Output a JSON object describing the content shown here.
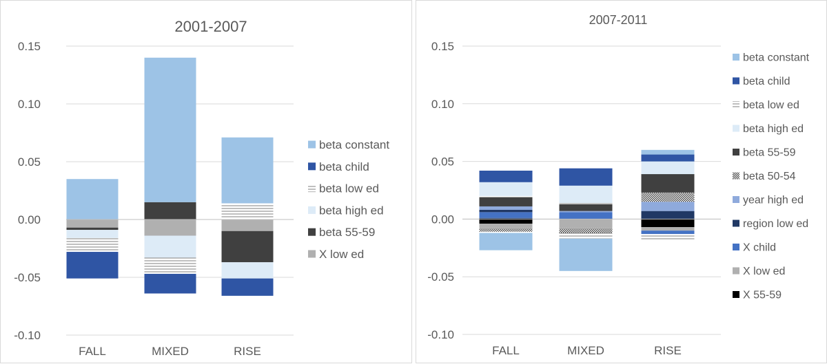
{
  "chart_data": [
    {
      "type": "bar",
      "stacked": true,
      "title": "2001-2007",
      "categories": [
        "FALL",
        "MIXED",
        "RISE"
      ],
      "ylim": [
        -0.1,
        0.15
      ],
      "yticks": [
        "0.15",
        "0.10",
        "0.05",
        "0.00",
        "-0.05",
        "-0.10"
      ],
      "ytick_values": [
        0.15,
        0.1,
        0.05,
        0.0,
        -0.05,
        -0.1
      ],
      "grid": true,
      "legend_position": "right",
      "legend": [
        {
          "name": "beta constant",
          "color": "#9dc3e6",
          "pattern": "solid"
        },
        {
          "name": "beta child",
          "color": "#2f55a4",
          "pattern": "solid"
        },
        {
          "name": "beta low ed",
          "color": "#ffffff",
          "pattern": "hlines"
        },
        {
          "name": "beta high ed",
          "color": "#ddebf7",
          "pattern": "solid"
        },
        {
          "name": "beta 55-59",
          "color": "#404040",
          "pattern": "solid"
        },
        {
          "name": "X low ed",
          "color": "#b0b0b0",
          "pattern": "solid"
        }
      ],
      "bars": [
        {
          "category": "FALL",
          "segments": [
            {
              "series": "beta constant",
              "from": 0,
              "to": 0.035
            },
            {
              "series": "X low ed",
              "from": 0,
              "to": -0.007
            },
            {
              "series": "beta 55-59",
              "from": -0.007,
              "to": -0.009
            },
            {
              "series": "beta high ed",
              "from": -0.009,
              "to": -0.016
            },
            {
              "series": "beta low ed",
              "from": -0.016,
              "to": -0.028
            },
            {
              "series": "beta child",
              "from": -0.028,
              "to": -0.051
            }
          ]
        },
        {
          "category": "MIXED",
          "segments": [
            {
              "series": "beta 55-59",
              "from": 0,
              "to": 0.015
            },
            {
              "series": "beta constant",
              "from": 0.015,
              "to": 0.14
            },
            {
              "series": "X low ed",
              "from": 0,
              "to": -0.014
            },
            {
              "series": "beta high ed",
              "from": -0.014,
              "to": -0.033
            },
            {
              "series": "beta low ed",
              "from": -0.033,
              "to": -0.047
            },
            {
              "series": "beta child",
              "from": -0.047,
              "to": -0.064
            }
          ]
        },
        {
          "category": "RISE",
          "segments": [
            {
              "series": "beta low ed",
              "from": 0,
              "to": 0.014
            },
            {
              "series": "beta constant",
              "from": 0.014,
              "to": 0.071
            },
            {
              "series": "X low ed",
              "from": 0,
              "to": -0.01
            },
            {
              "series": "beta 55-59",
              "from": -0.01,
              "to": -0.037
            },
            {
              "series": "beta high ed",
              "from": -0.037,
              "to": -0.051
            },
            {
              "series": "beta child",
              "from": -0.051,
              "to": -0.066
            }
          ]
        }
      ]
    },
    {
      "type": "bar",
      "stacked": true,
      "title": "2007-2011",
      "categories": [
        "FALL",
        "MIXED",
        "RISE"
      ],
      "ylim": [
        -0.1,
        0.15
      ],
      "yticks": [
        "0.15",
        "0.10",
        "0.05",
        "0.00",
        "-0.05",
        "-0.10"
      ],
      "ytick_values": [
        0.15,
        0.1,
        0.05,
        0.0,
        -0.05,
        -0.1
      ],
      "grid": true,
      "legend_position": "right",
      "legend": [
        {
          "name": "beta constant",
          "color": "#9dc3e6",
          "pattern": "solid"
        },
        {
          "name": "beta child",
          "color": "#2f55a4",
          "pattern": "solid"
        },
        {
          "name": "beta low ed",
          "color": "#ffffff",
          "pattern": "hlines"
        },
        {
          "name": "beta high ed",
          "color": "#ddebf7",
          "pattern": "solid"
        },
        {
          "name": "beta 55-59",
          "color": "#404040",
          "pattern": "solid"
        },
        {
          "name": "beta 50-54",
          "color": "#808080",
          "pattern": "checker"
        },
        {
          "name": "year high ed",
          "color": "#8faadc",
          "pattern": "solid"
        },
        {
          "name": "region low ed",
          "color": "#203864",
          "pattern": "solid"
        },
        {
          "name": "X child",
          "color": "#4472c4",
          "pattern": "solid"
        },
        {
          "name": "X low ed",
          "color": "#b0b0b0",
          "pattern": "solid"
        },
        {
          "name": "X 55-59",
          "color": "#000000",
          "pattern": "solid"
        }
      ],
      "bars": [
        {
          "category": "FALL",
          "segments": [
            {
              "series": "region low ed",
              "from": 0,
              "to": 0.001
            },
            {
              "series": "X child",
              "from": 0.001,
              "to": 0.006
            },
            {
              "series": "region low ed",
              "from": 0.006,
              "to": 0.008
            },
            {
              "series": "year high ed",
              "from": 0.008,
              "to": 0.011
            },
            {
              "series": "beta 55-59",
              "from": 0.011,
              "to": 0.019
            },
            {
              "series": "beta low ed",
              "from": 0.019,
              "to": 0.02
            },
            {
              "series": "beta high ed",
              "from": 0.02,
              "to": 0.032
            },
            {
              "series": "beta child",
              "from": 0.032,
              "to": 0.042
            },
            {
              "series": "X 55-59",
              "from": 0,
              "to": -0.004
            },
            {
              "series": "X low ed",
              "from": -0.004,
              "to": -0.008
            },
            {
              "series": "beta 50-54",
              "from": -0.008,
              "to": -0.011
            },
            {
              "series": "beta low ed",
              "from": -0.011,
              "to": -0.012
            },
            {
              "series": "beta constant",
              "from": -0.012,
              "to": -0.027
            }
          ]
        },
        {
          "category": "MIXED",
          "segments": [
            {
              "series": "X child",
              "from": 0,
              "to": 0.006
            },
            {
              "series": "year high ed",
              "from": 0.006,
              "to": 0.007
            },
            {
              "series": "beta 55-59",
              "from": 0.007,
              "to": 0.013
            },
            {
              "series": "beta low ed",
              "from": 0.013,
              "to": 0.014
            },
            {
              "series": "beta high ed",
              "from": 0.014,
              "to": 0.029
            },
            {
              "series": "beta child",
              "from": 0.029,
              "to": 0.044
            },
            {
              "series": "X low ed",
              "from": 0,
              "to": -0.008
            },
            {
              "series": "beta 50-54",
              "from": -0.008,
              "to": -0.012
            },
            {
              "series": "beta low ed",
              "from": -0.012,
              "to": -0.017
            },
            {
              "series": "beta constant",
              "from": -0.017,
              "to": -0.045
            }
          ]
        },
        {
          "category": "RISE",
          "segments": [
            {
              "series": "region low ed",
              "from": 0,
              "to": 0.007
            },
            {
              "series": "year high ed",
              "from": 0.007,
              "to": 0.015
            },
            {
              "series": "beta 50-54",
              "from": 0.015,
              "to": 0.023
            },
            {
              "series": "beta 55-59",
              "from": 0.023,
              "to": 0.039
            },
            {
              "series": "beta high ed",
              "from": 0.039,
              "to": 0.05
            },
            {
              "series": "beta child",
              "from": 0.05,
              "to": 0.056
            },
            {
              "series": "beta constant",
              "from": 0.056,
              "to": 0.06
            },
            {
              "series": "X 55-59",
              "from": 0,
              "to": -0.007
            },
            {
              "series": "X low ed",
              "from": -0.007,
              "to": -0.01
            },
            {
              "series": "X child",
              "from": -0.01,
              "to": -0.013
            },
            {
              "series": "beta low ed",
              "from": -0.013,
              "to": -0.018
            }
          ]
        }
      ]
    }
  ]
}
